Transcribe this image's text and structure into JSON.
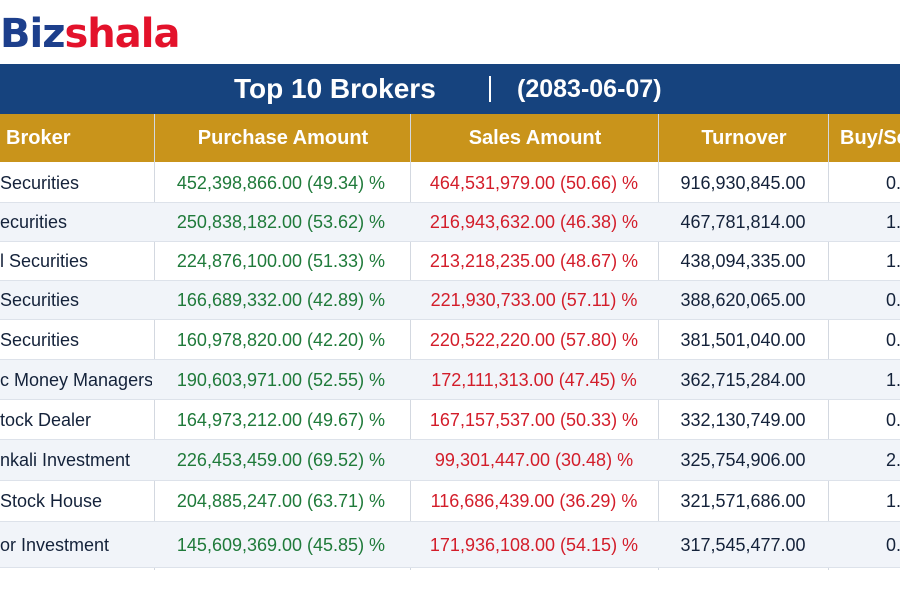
{
  "logo": {
    "part1": "Biz",
    "part2": "shala"
  },
  "title": {
    "main": "Top 10 Brokers",
    "date": "(2083-06-07)"
  },
  "columns": {
    "broker": "Broker",
    "purchase": "Purchase Amount",
    "sales": "Sales Amount",
    "turnover": "Turnover",
    "ratio": "Buy/Se"
  },
  "rows": [
    {
      "broker": "Securities",
      "purchase": "452,398,866.00 (49.34) %",
      "sales": "464,531,979.00 (50.66) %",
      "turnover": "916,930,845.00",
      "ratio": "0."
    },
    {
      "broker": "ecurities",
      "purchase": "250,838,182.00 (53.62) %",
      "sales": "216,943,632.00 (46.38) %",
      "turnover": "467,781,814.00",
      "ratio": "1."
    },
    {
      "broker": "l Securities",
      "purchase": "224,876,100.00 (51.33) %",
      "sales": "213,218,235.00 (48.67) %",
      "turnover": "438,094,335.00",
      "ratio": "1."
    },
    {
      "broker": "Securities",
      "purchase": "166,689,332.00 (42.89) %",
      "sales": "221,930,733.00 (57.11) %",
      "turnover": "388,620,065.00",
      "ratio": "0."
    },
    {
      "broker": "Securities",
      "purchase": "160,978,820.00 (42.20) %",
      "sales": "220,522,220.00 (57.80) %",
      "turnover": "381,501,040.00",
      "ratio": "0."
    },
    {
      "broker": "c Money Managers",
      "purchase": "190,603,971.00 (52.55) %",
      "sales": "172,111,313.00 (47.45) %",
      "turnover": "362,715,284.00",
      "ratio": "1."
    },
    {
      "broker": "tock Dealer",
      "purchase": "164,973,212.00 (49.67) %",
      "sales": "167,157,537.00 (50.33) %",
      "turnover": "332,130,749.00",
      "ratio": "0."
    },
    {
      "broker": "nkali Investment",
      "purchase": "226,453,459.00 (69.52) %",
      "sales": "99,301,447.00 (30.48) %",
      "turnover": "325,754,906.00",
      "ratio": "2."
    },
    {
      "broker": "Stock House",
      "purchase": "204,885,247.00 (63.71) %",
      "sales": "116,686,439.00 (36.29) %",
      "turnover": "321,571,686.00",
      "ratio": "1."
    },
    {
      "broker": "or Investment",
      "purchase": "145,609,369.00 (45.85) %",
      "sales": "171,936,108.00 (54.15) %",
      "turnover": "317,545,477.00",
      "ratio": "0."
    }
  ],
  "colors": {
    "brand_blue": "#16437e",
    "header_gold": "#c9941b",
    "buy_green": "#1f7a3a",
    "sell_red": "#d31d2a"
  }
}
